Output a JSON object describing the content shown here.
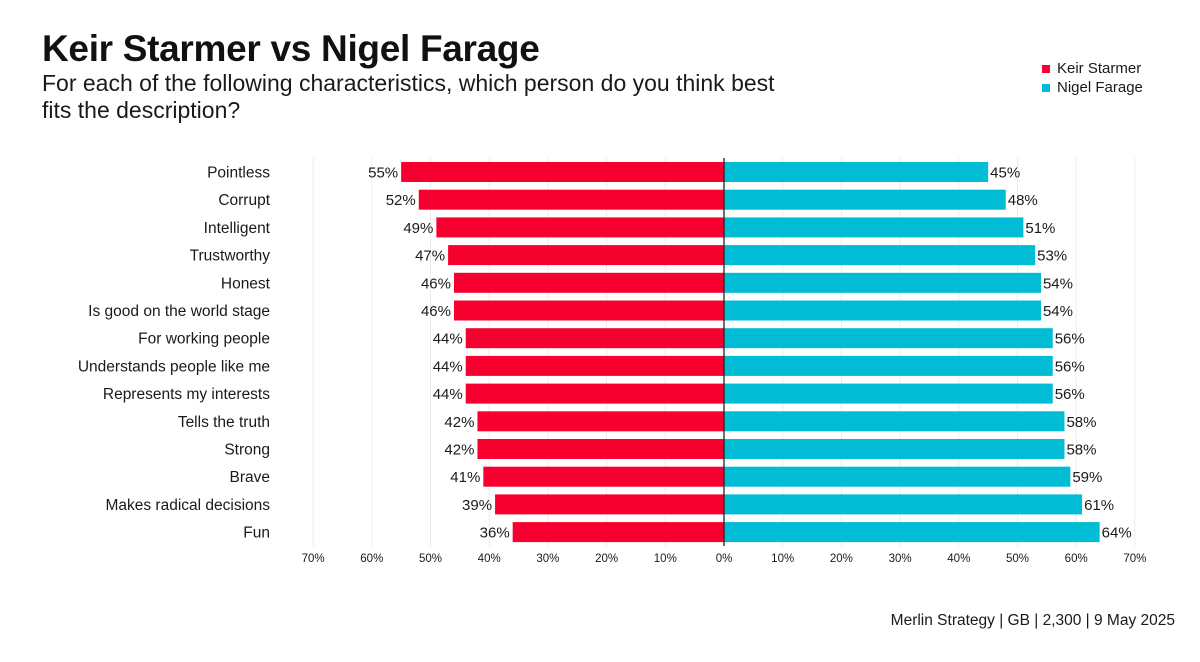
{
  "title": "Keir Starmer vs Nigel Farage",
  "subtitle": "For each of the following characteristics, which person do you think best fits the description?",
  "source": "Merlin Strategy | GB | 2,300 | 9 May 2025",
  "colors": {
    "starmer": "#f5002f",
    "farage": "#00bcd4",
    "gridline": "#ececec",
    "axis": "#222222"
  },
  "legend": [
    {
      "label": "Keir Starmer",
      "color": "#f5002f"
    },
    {
      "label": "Nigel Farage",
      "color": "#00bcd4"
    }
  ],
  "chart_data": {
    "type": "bar",
    "orientation": "horizontal-diverging",
    "title": "Keir Starmer vs Nigel Farage",
    "subtitle": "For each of the following characteristics, which person do you think best fits the description?",
    "categories": [
      "Pointless",
      "Corrupt",
      "Intelligent",
      "Trustworthy",
      "Honest",
      "Is good on the world stage",
      "For working people",
      "Understands people like me",
      "Represents my interests",
      "Tells the truth",
      "Strong",
      "Brave",
      "Makes radical decisions",
      "Fun"
    ],
    "series": [
      {
        "name": "Keir Starmer",
        "side": "left",
        "values": [
          55,
          52,
          49,
          47,
          46,
          46,
          44,
          44,
          44,
          42,
          42,
          41,
          39,
          36
        ],
        "labels": [
          "55%",
          "52%",
          "49%",
          "47%",
          "46%",
          "46%",
          "44%",
          "44%",
          "44%",
          "42%",
          "42%",
          "41%",
          "39%",
          "36%"
        ]
      },
      {
        "name": "Nigel Farage",
        "side": "right",
        "values": [
          45,
          48,
          51,
          53,
          54,
          54,
          56,
          56,
          56,
          58,
          58,
          59,
          61,
          64
        ],
        "labels": [
          "45%",
          "48%",
          "51%",
          "53%",
          "54%",
          "54%",
          "56%",
          "56%",
          "56%",
          "58%",
          "58%",
          "59%",
          "61%",
          "64%"
        ]
      }
    ],
    "xlim": [
      -70,
      70
    ],
    "x_ticks": [
      -70,
      -60,
      -50,
      -40,
      -30,
      -20,
      -10,
      0,
      10,
      20,
      30,
      40,
      50,
      60,
      70
    ],
    "x_tick_labels": [
      "70%",
      "60%",
      "50%",
      "40%",
      "30%",
      "20%",
      "10%",
      "0%",
      "10%",
      "20%",
      "30%",
      "40%",
      "50%",
      "60%",
      "70%"
    ],
    "grid": true,
    "legend_position": "top-right"
  }
}
